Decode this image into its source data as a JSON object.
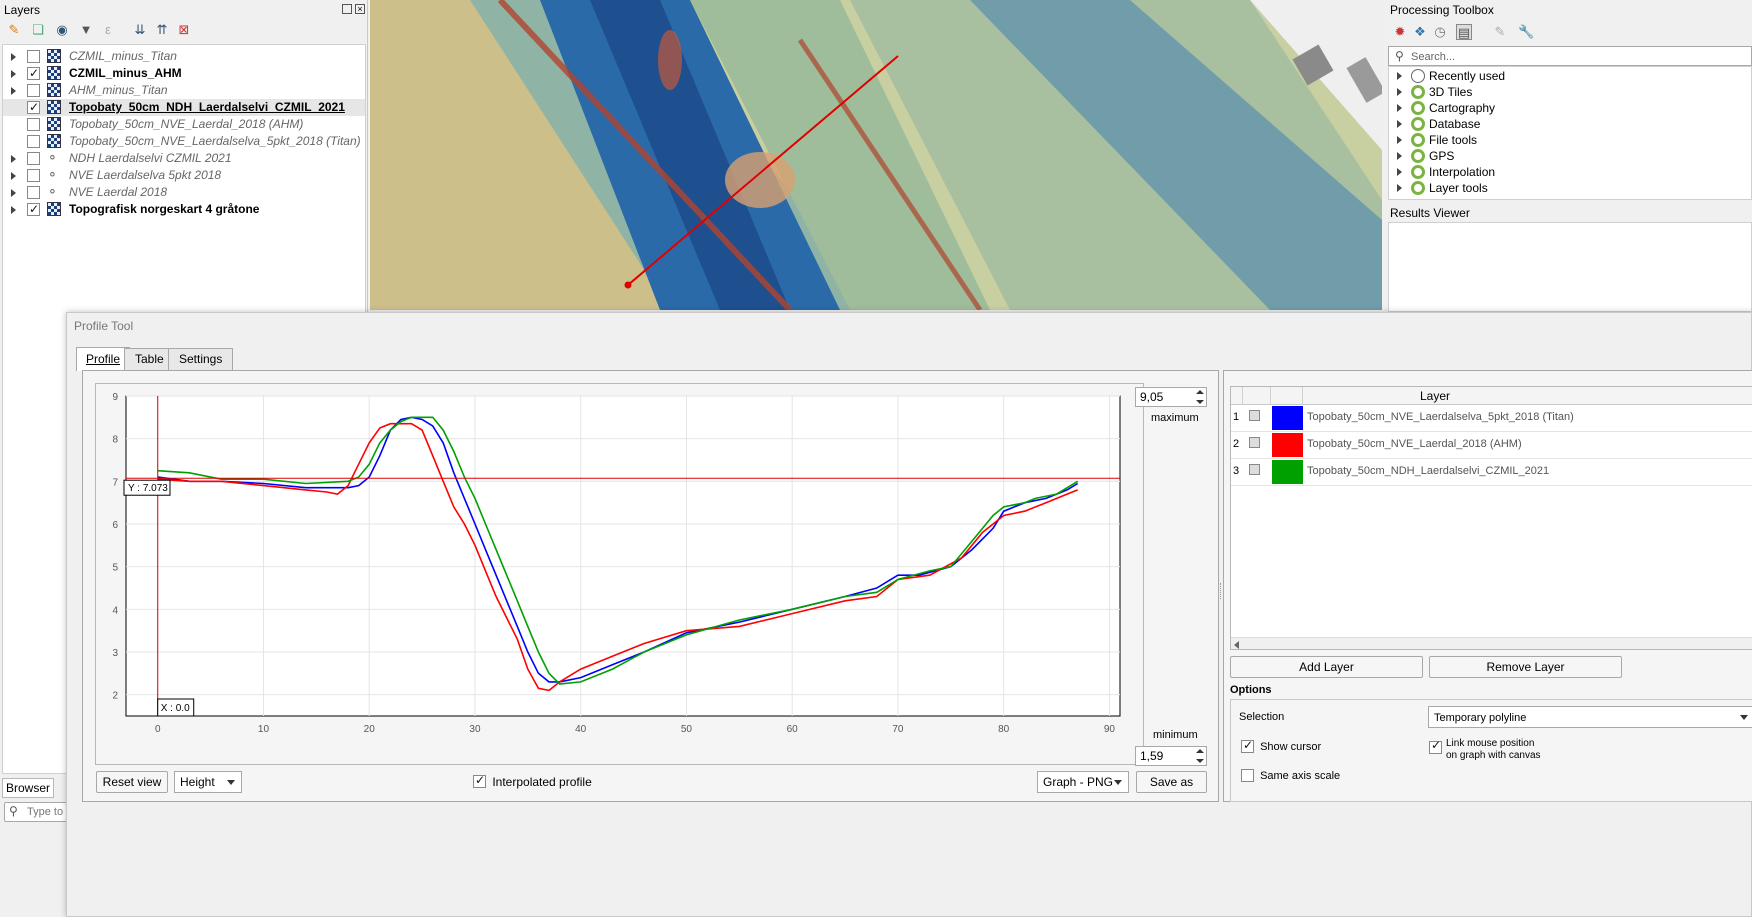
{
  "layers_panel": {
    "title": "Layers",
    "items": [
      {
        "name": "CZMIL_minus_Titan",
        "checked": false,
        "style": "italic",
        "kind": "raster",
        "expand": true
      },
      {
        "name": "CZMIL_minus_AHM",
        "checked": true,
        "style": "bold",
        "kind": "raster",
        "expand": true
      },
      {
        "name": "AHM_minus_Titan",
        "checked": false,
        "style": "italic",
        "kind": "raster",
        "expand": true
      },
      {
        "name": "Topobaty_50cm_NDH_Laerdalselvi_CZMIL_2021",
        "checked": true,
        "style": "bold-underline",
        "kind": "raster",
        "expand": false
      },
      {
        "name": "Topobaty_50cm_NVE_Laerdal_2018 (AHM)",
        "checked": false,
        "style": "italic",
        "kind": "raster",
        "expand": false
      },
      {
        "name": "Topobaty_50cm_NVE_Laerdalselva_5pkt_2018 (Titan)",
        "checked": false,
        "style": "italic",
        "kind": "raster",
        "expand": false
      },
      {
        "name": "NDH Laerdalselvi CZMIL 2021",
        "checked": false,
        "style": "italic",
        "kind": "vector",
        "expand": true
      },
      {
        "name": "NVE Laerdalselva 5pkt 2018",
        "checked": false,
        "style": "italic",
        "kind": "vector",
        "expand": true
      },
      {
        "name": "NVE Laerdal 2018",
        "checked": false,
        "style": "italic",
        "kind": "vector",
        "expand": true
      },
      {
        "name": "Topografisk norgeskart 4 gråtone",
        "checked": true,
        "style": "bold",
        "kind": "raster",
        "expand": true
      }
    ],
    "browser_tab": "Browser",
    "locator_placeholder": "Type to l"
  },
  "toolbox": {
    "title": "Processing Toolbox",
    "search_placeholder": "Search...",
    "items": [
      "Recently used",
      "3D Tiles",
      "Cartography",
      "Database",
      "File tools",
      "GPS",
      "Interpolation",
      "Layer tools"
    ],
    "results_title": "Results Viewer"
  },
  "profile_tool": {
    "title": "Profile Tool",
    "tabs": [
      "Profile",
      "Table",
      "Settings"
    ],
    "max_value": "9,05",
    "max_label": "maximum",
    "min_value": "1,59",
    "min_label": "minimum",
    "cursor_y_label": "Y : 7.073",
    "cursor_x_label": "X : 0.0",
    "reset_view": "Reset view",
    "plot_type": "Height",
    "interpolated_label": "Interpolated profile",
    "export_format": "Graph - PNG",
    "save_as": "Save as",
    "layer_table": {
      "header": "Layer",
      "rows": [
        {
          "num": "1",
          "color": "#0000ff",
          "name": "Topobaty_50cm_NVE_Laerdalselva_5pkt_2018 (Titan)"
        },
        {
          "num": "2",
          "color": "#ff0000",
          "name": "Topobaty_50cm_NVE_Laerdal_2018 (AHM)"
        },
        {
          "num": "3",
          "color": "#00a000",
          "name": "Topobaty_50cm_NDH_Laerdalselvi_CZMIL_2021"
        }
      ]
    },
    "add_layer": "Add Layer",
    "remove_layer": "Remove Layer",
    "options_title": "Options",
    "selection_label": "Selection",
    "selection_value": "Temporary polyline",
    "show_cursor": "Show cursor",
    "link_mouse_1": "Link mouse position",
    "link_mouse_2": "on graph with canvas",
    "same_axis": "Same axis scale"
  },
  "chart_data": {
    "type": "line",
    "xlabel": "",
    "ylabel": "",
    "xlim": [
      -3,
      91
    ],
    "ylim": [
      1.5,
      9
    ],
    "xticks": [
      0,
      10,
      20,
      30,
      40,
      50,
      60,
      70,
      80,
      90
    ],
    "yticks": [
      2,
      3,
      4,
      5,
      6,
      7,
      8,
      9
    ],
    "cursor": {
      "x": 0.0,
      "y": 7.073
    },
    "grid": true,
    "series": [
      {
        "color": "#0000ff",
        "points": [
          [
            0,
            7.1
          ],
          [
            3,
            7.0
          ],
          [
            6,
            7.0
          ],
          [
            10,
            6.95
          ],
          [
            14,
            6.85
          ],
          [
            18,
            6.85
          ],
          [
            19,
            6.9
          ],
          [
            20,
            7.1
          ],
          [
            21,
            7.6
          ],
          [
            22,
            8.2
          ],
          [
            23,
            8.45
          ],
          [
            24,
            8.5
          ],
          [
            25,
            8.45
          ],
          [
            26,
            8.3
          ],
          [
            27,
            7.9
          ],
          [
            28,
            7.2
          ],
          [
            29,
            6.6
          ],
          [
            30,
            6.0
          ],
          [
            31,
            5.4
          ],
          [
            32,
            4.8
          ],
          [
            33,
            4.2
          ],
          [
            34,
            3.6
          ],
          [
            35,
            3.0
          ],
          [
            36,
            2.5
          ],
          [
            37,
            2.3
          ],
          [
            38,
            2.3
          ],
          [
            40,
            2.4
          ],
          [
            43,
            2.7
          ],
          [
            46,
            3.0
          ],
          [
            50,
            3.45
          ],
          [
            55,
            3.7
          ],
          [
            60,
            4.0
          ],
          [
            65,
            4.3
          ],
          [
            68,
            4.5
          ],
          [
            70,
            4.8
          ],
          [
            72,
            4.8
          ],
          [
            75,
            5.0
          ],
          [
            77,
            5.4
          ],
          [
            79,
            5.9
          ],
          [
            80,
            6.3
          ],
          [
            81,
            6.4
          ],
          [
            82,
            6.5
          ],
          [
            84,
            6.6
          ],
          [
            86,
            6.8
          ],
          [
            87,
            6.95
          ]
        ]
      },
      {
        "color": "#ff0000",
        "points": [
          [
            0,
            7.05
          ],
          [
            3,
            7.0
          ],
          [
            6,
            7.0
          ],
          [
            10,
            6.9
          ],
          [
            14,
            6.8
          ],
          [
            16,
            6.75
          ],
          [
            17,
            6.7
          ],
          [
            18,
            6.9
          ],
          [
            19,
            7.4
          ],
          [
            20,
            7.9
          ],
          [
            21,
            8.25
          ],
          [
            22,
            8.35
          ],
          [
            24,
            8.35
          ],
          [
            25,
            8.2
          ],
          [
            26,
            7.6
          ],
          [
            27,
            7.0
          ],
          [
            28,
            6.4
          ],
          [
            29,
            6.0
          ],
          [
            30,
            5.5
          ],
          [
            31,
            4.9
          ],
          [
            32,
            4.3
          ],
          [
            33,
            3.8
          ],
          [
            34,
            3.3
          ],
          [
            35,
            2.6
          ],
          [
            36,
            2.15
          ],
          [
            37,
            2.1
          ],
          [
            38,
            2.3
          ],
          [
            40,
            2.6
          ],
          [
            43,
            2.9
          ],
          [
            46,
            3.2
          ],
          [
            50,
            3.5
          ],
          [
            55,
            3.6
          ],
          [
            60,
            3.9
          ],
          [
            65,
            4.2
          ],
          [
            68,
            4.3
          ],
          [
            70,
            4.7
          ],
          [
            73,
            4.8
          ],
          [
            76,
            5.2
          ],
          [
            78,
            5.8
          ],
          [
            80,
            6.2
          ],
          [
            82,
            6.3
          ],
          [
            84,
            6.5
          ],
          [
            86,
            6.7
          ],
          [
            87,
            6.8
          ]
        ]
      },
      {
        "color": "#00a000",
        "points": [
          [
            0,
            7.25
          ],
          [
            3,
            7.2
          ],
          [
            6,
            7.05
          ],
          [
            10,
            7.05
          ],
          [
            14,
            6.95
          ],
          [
            18,
            7.0
          ],
          [
            19,
            7.1
          ],
          [
            20,
            7.4
          ],
          [
            21,
            7.9
          ],
          [
            22,
            8.2
          ],
          [
            23,
            8.4
          ],
          [
            24,
            8.5
          ],
          [
            26,
            8.5
          ],
          [
            27,
            8.2
          ],
          [
            28,
            7.7
          ],
          [
            29,
            7.1
          ],
          [
            30,
            6.6
          ],
          [
            31,
            6.0
          ],
          [
            32,
            5.4
          ],
          [
            33,
            4.8
          ],
          [
            34,
            4.2
          ],
          [
            35,
            3.6
          ],
          [
            36,
            3.0
          ],
          [
            37,
            2.5
          ],
          [
            38,
            2.25
          ],
          [
            40,
            2.3
          ],
          [
            43,
            2.6
          ],
          [
            46,
            3.0
          ],
          [
            50,
            3.4
          ],
          [
            55,
            3.75
          ],
          [
            60,
            4.0
          ],
          [
            65,
            4.3
          ],
          [
            68,
            4.4
          ],
          [
            70,
            4.7
          ],
          [
            73,
            4.9
          ],
          [
            75,
            5.0
          ],
          [
            77,
            5.6
          ],
          [
            79,
            6.2
          ],
          [
            80,
            6.4
          ],
          [
            82,
            6.5
          ],
          [
            83,
            6.6
          ],
          [
            85,
            6.7
          ],
          [
            87,
            7.0
          ]
        ]
      }
    ]
  }
}
